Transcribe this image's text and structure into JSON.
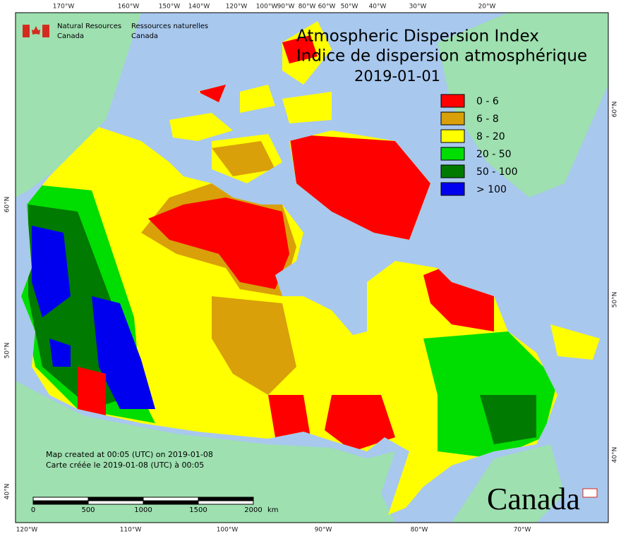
{
  "header": {
    "agency_en": [
      "Natural Resources",
      "Canada"
    ],
    "agency_fr": [
      "Ressources naturelles",
      "Canada"
    ]
  },
  "title": {
    "en": "Atmospheric Dispersion Index",
    "fr": "Indice de dispersion atmosphérique",
    "date": "2019-01-01"
  },
  "legend": [
    {
      "label": "0 - 6",
      "color": "#ff0000"
    },
    {
      "label": "6 - 8",
      "color": "#d9a00a"
    },
    {
      "label": "8 - 20",
      "color": "#ffff00"
    },
    {
      "label": "20 - 50",
      "color": "#00dd00"
    },
    {
      "label": "50 - 100",
      "color": "#007a00"
    },
    {
      "label": "> 100",
      "color": "#0000ee"
    }
  ],
  "graticule": {
    "top": [
      "170°W",
      "160°W",
      "150°W",
      "140°W",
      "120°W",
      "100°W",
      "90°W",
      "80°W",
      "60°W",
      "50°W",
      "40°W",
      "30°W",
      "20°W"
    ],
    "bottom": [
      "120°W",
      "110°W",
      "100°W",
      "90°W",
      "80°W",
      "70°W"
    ],
    "left": [
      "60°N",
      "50°N",
      "40°N"
    ],
    "right": [
      "60°N",
      "50°N",
      "40°N"
    ]
  },
  "scale_bar": {
    "labels": [
      "0",
      "500",
      "1000",
      "1500",
      "2000"
    ],
    "unit": "km"
  },
  "footer": [
    "Map created at 00:05 (UTC) on 2019-01-08",
    "Carte créée le 2019-01-08 (UTC) à 00:05"
  ],
  "wordmark": "Canada"
}
